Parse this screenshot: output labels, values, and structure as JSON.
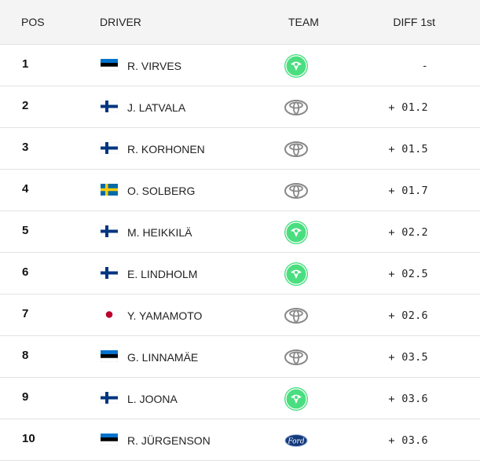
{
  "header": {
    "pos": "POS",
    "driver": "DRIVER",
    "team": "TEAM",
    "diff": "DIFF 1st"
  },
  "rows": [
    {
      "pos": "1",
      "flag": "estonia",
      "driver": "R. VIRVES",
      "team": "skoda-icon",
      "diff": "-"
    },
    {
      "pos": "2",
      "flag": "finland",
      "driver": "J. LATVALA",
      "team": "toyota-icon",
      "diff": "+ 01.2"
    },
    {
      "pos": "3",
      "flag": "finland",
      "driver": "R. KORHONEN",
      "team": "toyota-icon",
      "diff": "+ 01.5"
    },
    {
      "pos": "4",
      "flag": "sweden",
      "driver": "O. SOLBERG",
      "team": "toyota-icon",
      "diff": "+ 01.7"
    },
    {
      "pos": "5",
      "flag": "finland",
      "driver": "M. HEIKKILÄ",
      "team": "skoda-icon",
      "diff": "+ 02.2"
    },
    {
      "pos": "6",
      "flag": "finland",
      "driver": "E. LINDHOLM",
      "team": "skoda-icon",
      "diff": "+ 02.5"
    },
    {
      "pos": "7",
      "flag": "japan",
      "driver": "Y. YAMAMOTO",
      "team": "toyota-icon",
      "diff": "+ 02.6"
    },
    {
      "pos": "8",
      "flag": "estonia",
      "driver": "G. LINNAMÄE",
      "team": "toyota-icon",
      "diff": "+ 03.5"
    },
    {
      "pos": "9",
      "flag": "finland",
      "driver": "L. JOONA",
      "team": "skoda-icon",
      "diff": "+ 03.6"
    },
    {
      "pos": "10",
      "flag": "estonia",
      "driver": "R. JÜRGENSON",
      "team": "ford-icon",
      "diff": "+ 03.6"
    }
  ],
  "colors": {
    "skoda_green": "#4ade80",
    "estonia_blue": "#0072ce",
    "finland_blue": "#003580",
    "sweden_blue": "#006aa7",
    "sweden_yellow": "#fecc00",
    "japan_red": "#bc002d",
    "ford_blue": "#133a7c"
  }
}
